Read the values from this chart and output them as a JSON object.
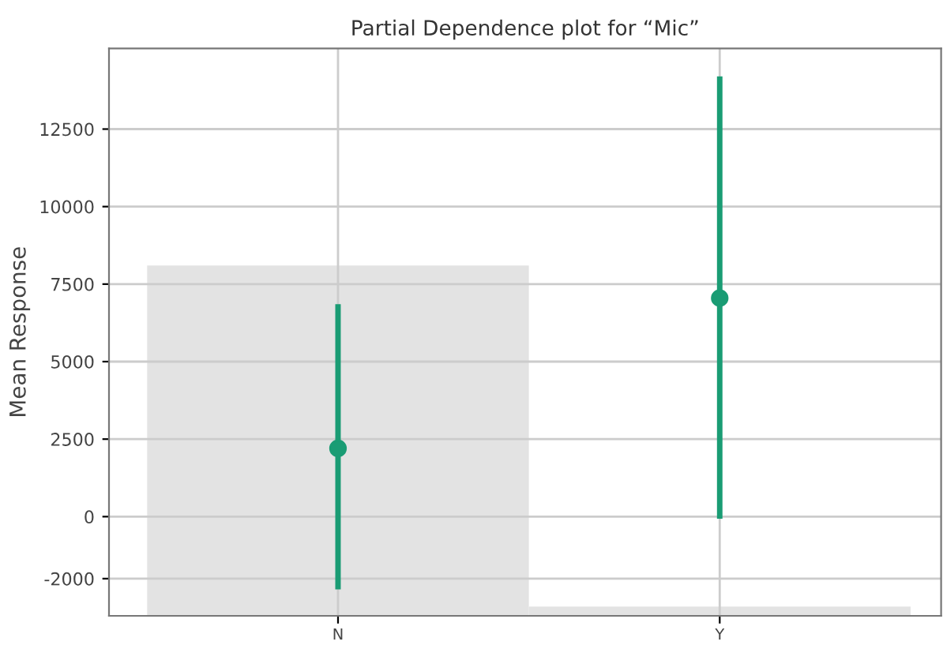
{
  "chart_data": {
    "title": "Partial Dependence plot for “Mic”",
    "ylabel": "Mean Response",
    "type": "scatter",
    "categories": [
      "N",
      "Y"
    ],
    "series": [
      {
        "type": "bar",
        "color": "#e3e3e3",
        "values": [
          11300,
          300
        ],
        "base": [
          -3200,
          -3200
        ]
      },
      {
        "color": "#1a9c74",
        "values": [
          2200,
          7050
        ],
        "errors": [
          [
            -2350,
            6850
          ],
          [
            -70,
            14200
          ]
        ],
        "marker": "circle"
      }
    ],
    "ylim": [
      -3200,
      15100
    ],
    "yticks": [
      -2000,
      0,
      2500,
      5000,
      7500,
      10000,
      12500
    ],
    "grid": true
  }
}
